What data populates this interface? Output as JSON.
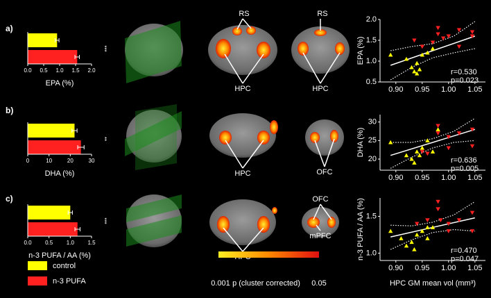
{
  "panel_labels": [
    "a)",
    "b)",
    "c)"
  ],
  "brain_labels": [
    "RS",
    "RS",
    "HPC",
    "HPC",
    "HPC",
    "OFC",
    "OFC",
    "mPFC",
    "HPC"
  ],
  "legend": [
    {
      "label": "control",
      "color": "#ffff00"
    },
    {
      "label": "n-3 PUFA",
      "color": "#ff2020"
    }
  ],
  "colorbar": {
    "min_label": "0.001",
    "title": "p (cluster corrected)",
    "max_label": "0.05"
  },
  "chart_data": [
    {
      "type": "hbar",
      "values": [
        0.92,
        1.55
      ],
      "errors": [
        0.06,
        0.07
      ],
      "xlim": [
        0,
        2
      ],
      "xticks": [
        {
          "value": 0,
          "label": "0.0"
        },
        0.5,
        {
          "value": 1,
          "label": "1.0"
        },
        1.5,
        {
          "value": 2,
          "label": "2.0"
        }
      ],
      "xlabel": "EPA (%)",
      "significance": "***"
    },
    {
      "type": "hbar",
      "values": [
        22,
        25
      ],
      "errors": [
        1.2,
        1.5
      ],
      "xlim": [
        0,
        30
      ],
      "xticks": [
        0,
        10,
        20,
        30
      ],
      "xlabel": "DHA (%)",
      "significance": "**"
    },
    {
      "type": "hbar",
      "values": [
        1.0,
        1.17
      ],
      "errors": [
        0.05,
        0.06
      ],
      "xlim": [
        0,
        1.5
      ],
      "xticks": [
        {
          "value": 0,
          "label": "0.0"
        },
        0.5,
        {
          "value": 1,
          "label": "1.0"
        },
        1.5
      ],
      "xlabel": "n-3 PUFA / AA (%)",
      "significance": "***"
    },
    {
      "type": "scatter",
      "ylabel": "EPA (%)",
      "xlim": [
        0.87,
        1.07
      ],
      "ylim": [
        0.5,
        2.0
      ],
      "xticks": [
        {
          "value": 0.9,
          "label": "0.90"
        },
        0.95,
        {
          "value": 1.0,
          "label": "1.00"
        },
        1.05
      ],
      "yticks": [
        0.5,
        {
          "value": 1,
          "label": "1.0"
        },
        1.5,
        {
          "value": 2,
          "label": "2.0"
        }
      ],
      "series": [
        {
          "color": "#ffff00",
          "marker": "up",
          "x": [
            0.89,
            0.92,
            0.93,
            0.935,
            0.94,
            0.94,
            0.945,
            0.95,
            0.96,
            0.97
          ],
          "values": [
            1.15,
            1.05,
            0.85,
            0.75,
            0.7,
            0.95,
            0.8,
            1.15,
            1.2,
            1.3
          ]
        },
        {
          "color": "#ff2020",
          "marker": "down",
          "x": [
            0.935,
            0.98,
            0.98,
            0.99,
            0.97,
            1.0,
            1.02,
            1.02,
            1.045,
            1.045,
            0.95
          ],
          "values": [
            1.5,
            1.8,
            1.65,
            1.55,
            1.45,
            1.6,
            1.35,
            1.75,
            1.7,
            1.6,
            1.35
          ]
        }
      ],
      "fit": {
        "x": [
          0.89,
          1.05
        ],
        "y": [
          0.9,
          1.6
        ]
      },
      "ci": {
        "x": [
          0.89,
          0.93,
          0.97,
          1.01,
          1.05
        ],
        "upper": [
          1.25,
          1.35,
          1.42,
          1.6,
          1.95
        ],
        "lower": [
          0.55,
          0.85,
          1.08,
          1.2,
          1.3
        ]
      },
      "stats": [
        "r=0.530",
        "p=0.023"
      ]
    },
    {
      "type": "scatter",
      "ylabel": "DHA (%)",
      "xlim": [
        0.87,
        1.07
      ],
      "ylim": [
        17,
        32
      ],
      "xticks": [
        {
          "value": 0.9,
          "label": "0.90"
        },
        0.95,
        {
          "value": 1.0,
          "label": "1.00"
        },
        1.05
      ],
      "yticks": [
        20,
        25,
        30
      ],
      "series": [
        {
          "color": "#ffff00",
          "marker": "up",
          "x": [
            0.89,
            0.92,
            0.93,
            0.935,
            0.94,
            0.945,
            0.95,
            0.96,
            0.97,
            0.98
          ],
          "values": [
            24.5,
            21,
            20,
            19,
            22,
            21,
            23,
            25,
            22,
            28
          ]
        },
        {
          "color": "#ff2020",
          "marker": "down",
          "x": [
            0.95,
            0.96,
            0.98,
            0.98,
            1.0,
            1.0,
            1.02,
            1.045,
            1.045
          ],
          "values": [
            22,
            21.5,
            29,
            27,
            26,
            23,
            27,
            28,
            23.5
          ]
        }
      ],
      "fit": {
        "x": [
          0.89,
          1.05
        ],
        "y": [
          21,
          28
        ]
      },
      "ci": {
        "x": [
          0.89,
          0.93,
          0.97,
          1.01,
          1.05
        ],
        "upper": [
          24.5,
          24.5,
          25.5,
          27.5,
          31
        ],
        "lower": [
          17.5,
          20.5,
          23,
          24.5,
          25
        ]
      },
      "stats": [
        "r=0.636",
        "p=0.005"
      ]
    },
    {
      "type": "scatter",
      "ylabel": "n-3 PUFA / AA (%)",
      "xlabel": "HPC GM mean vol (mm³)",
      "xlim": [
        0.87,
        1.07
      ],
      "ylim": [
        0.9,
        1.75
      ],
      "xticks": [
        {
          "value": 0.9,
          "label": "0.90"
        },
        0.95,
        {
          "value": 1.0,
          "label": "1.00"
        },
        1.05
      ],
      "yticks": [
        {
          "value": 1,
          "label": "1.0"
        },
        1.5
      ],
      "series": [
        {
          "color": "#ffff00",
          "marker": "up",
          "x": [
            0.89,
            0.91,
            0.92,
            0.93,
            0.935,
            0.94,
            0.95,
            0.96,
            0.97,
            0.96
          ],
          "values": [
            1.3,
            1.2,
            1.1,
            1.15,
            1.05,
            1.25,
            1.3,
            1.35,
            1.35,
            1.2
          ]
        },
        {
          "color": "#ff2020",
          "marker": "down",
          "x": [
            0.94,
            0.96,
            0.98,
            0.98,
            0.985,
            1.0,
            1.02,
            1.045,
            1.045,
            1.0
          ],
          "values": [
            1.4,
            1.45,
            1.7,
            1.6,
            1.45,
            1.4,
            1.45,
            1.55,
            1.3,
            1.3
          ]
        }
      ],
      "fit": {
        "x": [
          0.89,
          1.05
        ],
        "y": [
          1.22,
          1.48
        ]
      },
      "ci": {
        "x": [
          0.89,
          0.93,
          0.97,
          1.01,
          1.05
        ],
        "upper": [
          1.38,
          1.37,
          1.42,
          1.52,
          1.7
        ],
        "lower": [
          1.05,
          1.18,
          1.28,
          1.32,
          1.3
        ]
      },
      "stats": [
        "r=0.470",
        "p=0.047"
      ]
    }
  ]
}
